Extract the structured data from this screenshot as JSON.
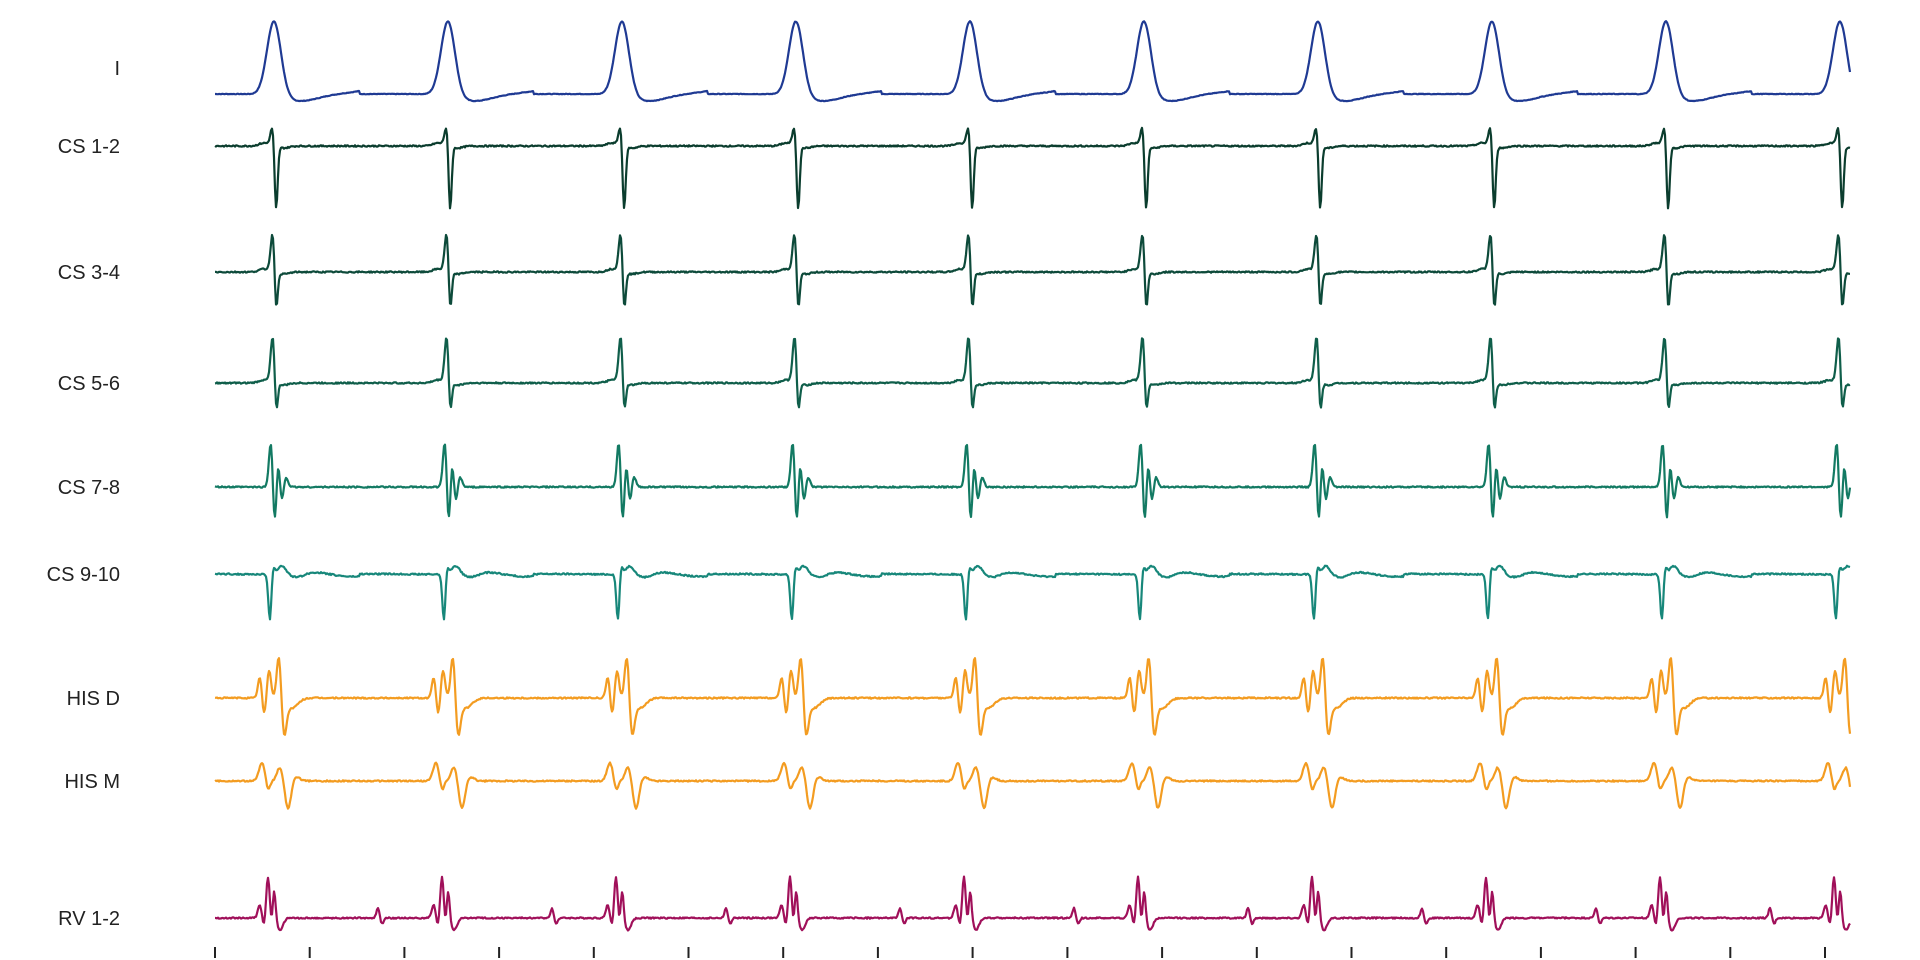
{
  "chart_data": {
    "type": "line",
    "title": "",
    "xlabel": "",
    "ylabel": "",
    "beats": 10,
    "beat_interval_s": 0.87,
    "duration_s": 8.79,
    "x_ticks": 18,
    "series": [
      {
        "name": "I",
        "color": "#1f3a93",
        "template": "surface"
      },
      {
        "name": "CS 1-2",
        "color": "#0b3d2e",
        "template": "cs_bipolar",
        "params": {
          "up": 22,
          "down": 70
        }
      },
      {
        "name": "CS 3-4",
        "color": "#0d4a3a",
        "template": "cs_bipolar",
        "params": {
          "up": 42,
          "down": 48
        }
      },
      {
        "name": "CS 5-6",
        "color": "#0f5e4a",
        "template": "cs_bipolar",
        "params": {
          "up": 50,
          "down": 40
        }
      },
      {
        "name": "CS 7-8",
        "color": "#137a63",
        "template": "cs_multi",
        "params": {
          "up": 48,
          "down": 42
        }
      },
      {
        "name": "CS 9-10",
        "color": "#17877a",
        "template": "cs_distal",
        "params": {
          "up": 12,
          "down": 52
        }
      },
      {
        "name": "HIS D",
        "color": "#f39c21",
        "template": "his_d"
      },
      {
        "name": "HIS M",
        "color": "#f39c21",
        "template": "his_m"
      },
      {
        "name": "RV 1-2",
        "color": "#a0105a",
        "template": "rv"
      }
    ]
  }
}
